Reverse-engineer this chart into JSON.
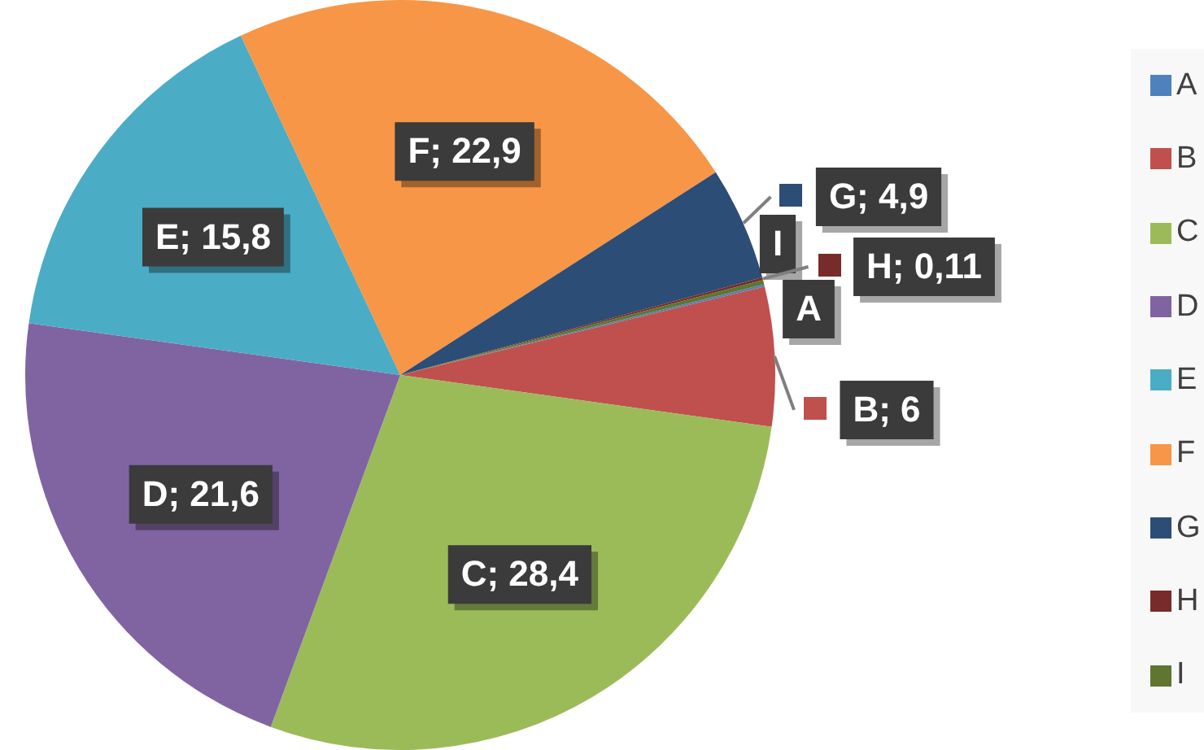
{
  "chart_data": {
    "type": "pie",
    "categories": [
      "A",
      "B",
      "C",
      "D",
      "E",
      "F",
      "G",
      "H",
      "I"
    ],
    "values": [
      0.1,
      6,
      28.4,
      21.6,
      15.8,
      22.9,
      4.9,
      0.11,
      0.19
    ],
    "colors": [
      "#4f81bd",
      "#c0504d",
      "#9bbb59",
      "#8064a2",
      "#4bacc6",
      "#f79646",
      "#2c4d75",
      "#772c2a",
      "#5f7530"
    ],
    "value_labels": [
      "A",
      "B; 6",
      "C; 28,4",
      "D; 21,6",
      "E; 15,8",
      "F; 22,9",
      "G; 4,9",
      "H; 0,11",
      "I"
    ],
    "legend": "right"
  }
}
